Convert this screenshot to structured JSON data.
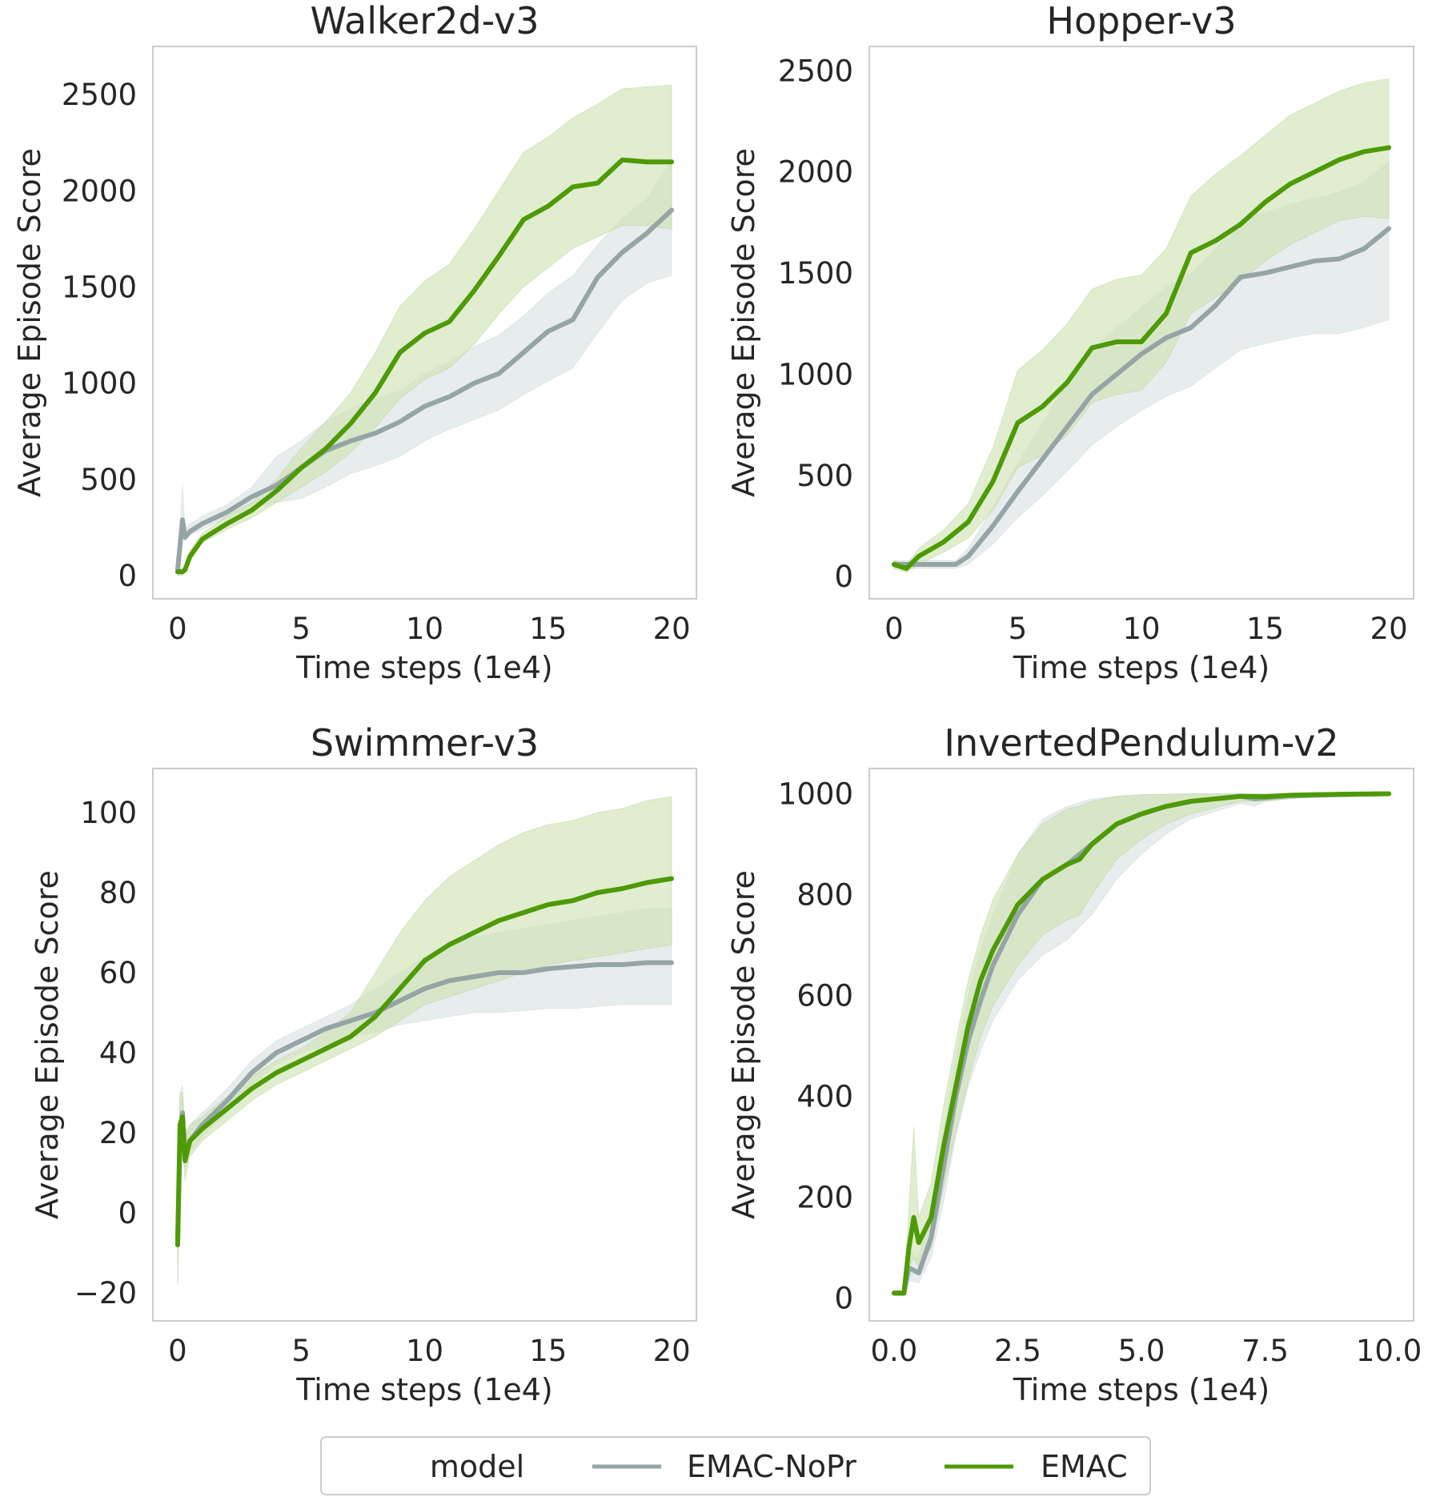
{
  "legend": {
    "title": "model",
    "items": [
      {
        "label": "EMAC-NoPr",
        "color": "#95a5a6"
      },
      {
        "label": "EMAC",
        "color": "#4e9a06"
      }
    ]
  },
  "colors": {
    "noPr_line": "#95a5a6",
    "noPr_band": "#dfe5e5",
    "emac_line": "#4e9a06",
    "emac_band": "#cfe3b5",
    "frame": "#cccccc"
  },
  "chart_data": [
    {
      "type": "line",
      "title": "Walker2d-v3",
      "xlabel": "Time steps (1e4)",
      "ylabel": "Average Episode Score",
      "xlim": [
        -1,
        21
      ],
      "ylim": [
        -120,
        2750
      ],
      "xticks": [
        0,
        5,
        10,
        15,
        20
      ],
      "yticks": [
        0,
        500,
        1000,
        1500,
        2000,
        2500
      ],
      "grid": false,
      "series": [
        {
          "name": "EMAC-NoPr",
          "x": [
            0,
            0.2,
            0.3,
            0.5,
            1,
            2,
            3,
            4,
            5,
            6,
            7,
            8,
            9,
            10,
            11,
            12,
            13,
            14,
            15,
            16,
            17,
            18,
            19,
            20
          ],
          "y": [
            30,
            290,
            200,
            230,
            270,
            330,
            410,
            470,
            560,
            650,
            700,
            740,
            800,
            880,
            930,
            1000,
            1050,
            1160,
            1270,
            1330,
            1550,
            1680,
            1780,
            1900
          ],
          "lower": [
            0,
            200,
            180,
            210,
            240,
            300,
            350,
            380,
            400,
            460,
            530,
            570,
            620,
            700,
            760,
            810,
            860,
            940,
            1010,
            1080,
            1260,
            1430,
            1520,
            1560
          ],
          "upper": [
            60,
            480,
            240,
            270,
            310,
            370,
            460,
            620,
            700,
            800,
            870,
            920,
            960,
            1050,
            1110,
            1190,
            1250,
            1350,
            1470,
            1560,
            1720,
            1860,
            1960,
            2160
          ]
        },
        {
          "name": "EMAC",
          "x": [
            0,
            0.2,
            0.3,
            0.5,
            1,
            2,
            3,
            4,
            5,
            6,
            7,
            8,
            9,
            10,
            11,
            12,
            13,
            14,
            15,
            16,
            17,
            18,
            19,
            20
          ],
          "y": [
            20,
            20,
            30,
            100,
            190,
            270,
            340,
            440,
            560,
            660,
            790,
            950,
            1160,
            1260,
            1320,
            1480,
            1660,
            1850,
            1920,
            2020,
            2040,
            2160,
            2150,
            2150
          ],
          "lower": [
            0,
            0,
            20,
            80,
            170,
            240,
            300,
            380,
            460,
            540,
            640,
            770,
            920,
            1020,
            1080,
            1200,
            1360,
            1500,
            1600,
            1700,
            1760,
            1820,
            1820,
            1800
          ],
          "upper": [
            40,
            40,
            50,
            130,
            220,
            310,
            380,
            500,
            660,
            800,
            950,
            1160,
            1400,
            1530,
            1620,
            1800,
            2000,
            2200,
            2280,
            2380,
            2450,
            2530,
            2540,
            2550
          ]
        }
      ]
    },
    {
      "type": "line",
      "title": "Hopper-v3",
      "xlabel": "Time steps (1e4)",
      "ylabel": "Average Episode Score",
      "xlim": [
        -1,
        21
      ],
      "ylim": [
        -110,
        2620
      ],
      "xticks": [
        0,
        5,
        10,
        15,
        20
      ],
      "yticks": [
        0,
        500,
        1000,
        1500,
        2000,
        2500
      ],
      "grid": false,
      "series": [
        {
          "name": "EMAC-NoPr",
          "x": [
            0,
            0.5,
            1,
            2,
            2.5,
            3,
            4,
            5,
            6,
            7,
            8,
            9,
            10,
            11,
            12,
            13,
            14,
            15,
            16,
            17,
            18,
            19,
            20
          ],
          "y": [
            60,
            60,
            60,
            60,
            60,
            100,
            250,
            420,
            580,
            740,
            900,
            1000,
            1100,
            1180,
            1230,
            1340,
            1480,
            1500,
            1530,
            1560,
            1570,
            1620,
            1720
          ],
          "lower": [
            40,
            40,
            40,
            40,
            40,
            60,
            160,
            290,
            400,
            520,
            650,
            740,
            820,
            890,
            940,
            1030,
            1120,
            1150,
            1180,
            1200,
            1200,
            1230,
            1270
          ],
          "upper": [
            80,
            80,
            80,
            80,
            80,
            140,
            340,
            560,
            760,
            960,
            1120,
            1230,
            1330,
            1430,
            1500,
            1620,
            1760,
            1800,
            1840,
            1870,
            1900,
            1950,
            2050
          ]
        },
        {
          "name": "EMAC",
          "x": [
            0,
            0.5,
            1,
            2,
            3,
            4,
            5,
            6,
            7,
            8,
            9,
            10,
            11,
            12,
            13,
            14,
            15,
            16,
            17,
            18,
            19,
            20
          ],
          "y": [
            60,
            40,
            100,
            170,
            270,
            470,
            760,
            840,
            960,
            1130,
            1160,
            1160,
            1300,
            1600,
            1660,
            1740,
            1850,
            1940,
            2000,
            2060,
            2100,
            2120
          ],
          "lower": [
            40,
            20,
            60,
            120,
            190,
            330,
            540,
            600,
            700,
            860,
            900,
            920,
            1060,
            1300,
            1380,
            1460,
            1560,
            1640,
            1700,
            1760,
            1780,
            1770
          ],
          "upper": [
            80,
            60,
            140,
            230,
            360,
            640,
            1020,
            1120,
            1250,
            1420,
            1470,
            1490,
            1620,
            1880,
            1990,
            2080,
            2180,
            2280,
            2340,
            2400,
            2440,
            2460
          ]
        }
      ]
    },
    {
      "type": "line",
      "title": "Swimmer-v3",
      "xlabel": "Time steps (1e4)",
      "ylabel": "Average Episode Score",
      "xlim": [
        -1,
        21
      ],
      "ylim": [
        -27,
        111
      ],
      "xticks": [
        0,
        5,
        10,
        15,
        20
      ],
      "yticks": [
        -20,
        0,
        20,
        40,
        60,
        80,
        100
      ],
      "grid": false,
      "series": [
        {
          "name": "EMAC-NoPr",
          "x": [
            0,
            0.1,
            0.2,
            0.3,
            0.5,
            1,
            2,
            3,
            4,
            5,
            6,
            7,
            8,
            9,
            10,
            11,
            12,
            13,
            14,
            15,
            16,
            17,
            18,
            19,
            20
          ],
          "y": [
            -8,
            20,
            25,
            15,
            18,
            22,
            28,
            35,
            40,
            43,
            46,
            48,
            50,
            53,
            56,
            58,
            59,
            60,
            60,
            61,
            61.5,
            62,
            62,
            62.5,
            62.5
          ],
          "lower": [
            -18,
            14,
            20,
            11,
            15,
            19,
            25,
            32,
            37,
            40,
            42,
            44,
            45,
            47,
            48,
            49,
            50,
            50,
            50.5,
            51,
            51,
            51.5,
            52,
            52,
            52
          ],
          "upper": [
            2,
            30,
            32,
            20,
            22,
            25,
            31,
            38,
            43,
            46,
            49,
            52,
            56,
            60,
            64,
            67,
            69,
            70,
            71,
            72,
            73,
            74,
            75,
            76,
            76
          ]
        },
        {
          "name": "EMAC",
          "x": [
            0,
            0.1,
            0.2,
            0.3,
            0.5,
            1,
            2,
            3,
            4,
            5,
            6,
            7,
            8,
            9,
            10,
            11,
            12,
            13,
            14,
            15,
            16,
            17,
            18,
            19,
            20
          ],
          "y": [
            -8,
            22,
            24,
            13,
            18,
            21,
            26,
            31,
            35,
            38,
            41,
            44,
            49,
            56,
            63,
            67,
            70,
            73,
            75,
            77,
            78,
            80,
            81,
            82.5,
            83.5
          ],
          "lower": [
            -18,
            14,
            18,
            8,
            14,
            18,
            23,
            28,
            32,
            35,
            38,
            41,
            44,
            48,
            52,
            54,
            56,
            58,
            60,
            62,
            63,
            64,
            65,
            66,
            67
          ],
          "upper": [
            2,
            30,
            30,
            18,
            22,
            24,
            29,
            34,
            38,
            41,
            45,
            50,
            60,
            70,
            78,
            84,
            88,
            92,
            95,
            97,
            98,
            100,
            101,
            103,
            104
          ]
        }
      ]
    },
    {
      "type": "line",
      "title": "InvertedPendulum-v2",
      "xlabel": "Time steps (1e4)",
      "ylabel": "Average Episode Score",
      "xlim": [
        -0.5,
        10.5
      ],
      "ylim": [
        -45,
        1050
      ],
      "xticks": [
        0.0,
        2.5,
        5.0,
        7.5,
        10.0
      ],
      "xtick_labels": [
        "0.0",
        "2.5",
        "5.0",
        "7.5",
        "10.0"
      ],
      "yticks": [
        0,
        200,
        400,
        600,
        800,
        1000
      ],
      "grid": false,
      "series": [
        {
          "name": "EMAC-NoPr",
          "x": [
            0,
            0.2,
            0.3,
            0.5,
            0.75,
            1,
            1.25,
            1.5,
            1.75,
            2,
            2.5,
            3,
            3.5,
            4,
            4.5,
            5,
            5.5,
            6,
            7,
            7.3,
            7.5,
            8,
            9,
            10
          ],
          "y": [
            10,
            10,
            60,
            50,
            120,
            260,
            400,
            510,
            590,
            660,
            760,
            830,
            860,
            900,
            940,
            960,
            975,
            985,
            995,
            990,
            992,
            996,
            998,
            1000
          ],
          "lower": [
            5,
            5,
            35,
            30,
            80,
            190,
            320,
            420,
            490,
            550,
            630,
            680,
            710,
            760,
            830,
            880,
            920,
            950,
            980,
            975,
            985,
            990,
            995,
            998
          ],
          "upper": [
            15,
            15,
            90,
            80,
            170,
            330,
            480,
            600,
            690,
            760,
            880,
            950,
            975,
            990,
            995,
            998,
            999,
            1000,
            1000,
            1000,
            1000,
            1000,
            1000,
            1000
          ]
        },
        {
          "name": "EMAC",
          "x": [
            0,
            0.2,
            0.3,
            0.4,
            0.5,
            0.75,
            1,
            1.25,
            1.5,
            1.75,
            2,
            2.5,
            3,
            3.5,
            3.75,
            4,
            4.5,
            5,
            5.5,
            6,
            7,
            7.5,
            8,
            9,
            10
          ],
          "y": [
            10,
            10,
            100,
            160,
            110,
            160,
            300,
            420,
            540,
            630,
            690,
            780,
            830,
            860,
            870,
            900,
            940,
            960,
            975,
            985,
            995,
            994,
            997,
            999,
            1000
          ],
          "lower": [
            5,
            5,
            60,
            80,
            60,
            100,
            220,
            330,
            430,
            520,
            580,
            660,
            720,
            750,
            760,
            800,
            870,
            910,
            940,
            960,
            985,
            985,
            990,
            996,
            998
          ],
          "upper": [
            15,
            15,
            180,
            340,
            160,
            230,
            380,
            510,
            630,
            720,
            790,
            880,
            940,
            970,
            975,
            985,
            995,
            998,
            999,
            1000,
            1000,
            1000,
            1000,
            1000,
            1000
          ]
        }
      ]
    }
  ]
}
